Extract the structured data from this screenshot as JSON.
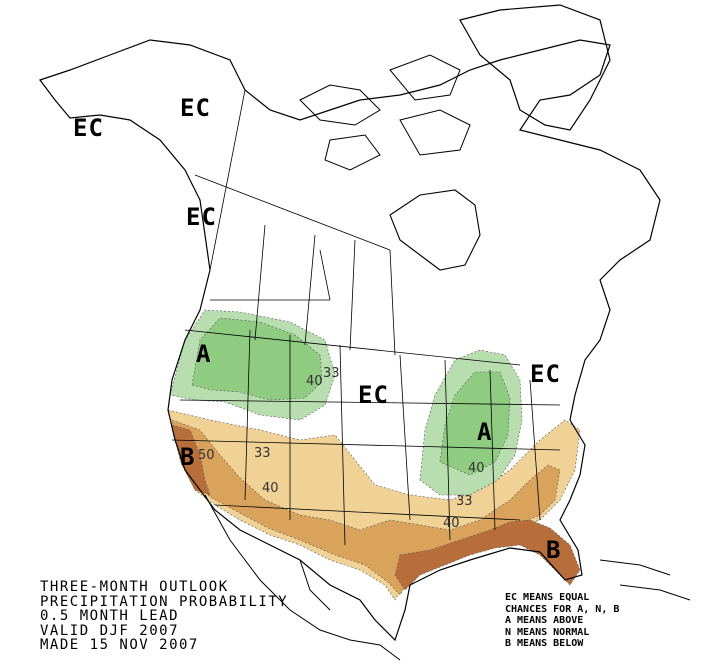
{
  "title_lines": [
    "THREE-MONTH OUTLOOK",
    "PRECIPITATION PROBABILITY",
    "0.5 MONTH LEAD",
    "VALID DJF 2007",
    "MADE 15 NOV 2007"
  ],
  "legend_lines": [
    "EC MEANS EQUAL",
    "CHANCES FOR A, N, B",
    "A MEANS ABOVE",
    "N MEANS NORMAL",
    "B MEANS BELOW"
  ],
  "region_labels": {
    "ec_alaska_north": "EC",
    "ec_alaska_west": "EC",
    "ec_panhandle": "EC",
    "ec_central": "EC",
    "ec_northeast": "EC",
    "a_northwest": "A",
    "a_great_lakes": "A",
    "b_california": "B",
    "b_florida": "B"
  },
  "contour_labels": {
    "nw_33": "33",
    "nw_40": "40",
    "ca_50": "50",
    "sw_33": "33",
    "sw_40": "40",
    "gl_40": "40",
    "se_33": "33",
    "se_40": "40"
  },
  "colors": {
    "above_light": "#b8deb0",
    "above_dark": "#8fcc82",
    "below_light": "#f0d296",
    "below_mid": "#d9a35c",
    "below_dark": "#b86e3a",
    "outline": "#000000"
  }
}
